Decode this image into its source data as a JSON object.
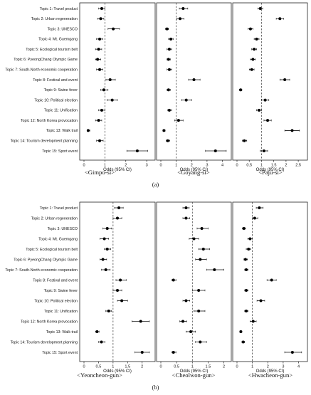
{
  "figure": {
    "part_a_label": "(a)",
    "part_b_label": "(b)"
  },
  "chart_data": [
    {
      "type": "forest",
      "region": "<Gimpo-si>",
      "xlabel": "Odds (95% CI)",
      "xlim": [
        0,
        3.2
      ],
      "xticks": [
        0,
        1,
        2,
        3
      ],
      "reference_line": 1,
      "topics": [
        "Topic 1: Travel product",
        "Topic 2: Urban regeneration",
        "Topic 3: UNESCO",
        "Topic 4: Mt. Guemgang",
        "Topic 5: Ecological tourism belt",
        "Topic 6: PyeongChang Olympic Game",
        "Topic 7: South-North economic cooperation",
        "Topic 8: Festival and event",
        "Topic 9: Swine fever",
        "Topic 10: Political election",
        "Topic 11: Unification",
        "Topic 12: North Korea provocation",
        "Topic 13: Walk trail",
        "Topic 14: Tourism development planning",
        "Topic 15: Sport event"
      ],
      "odds": [
        0.85,
        0.8,
        1.4,
        0.75,
        0.7,
        0.65,
        0.75,
        1.25,
        0.95,
        1.35,
        0.85,
        0.7,
        0.2,
        0.75,
        2.55
      ],
      "ci_low": [
        0.7,
        0.65,
        1.15,
        0.6,
        0.55,
        0.55,
        0.6,
        1.05,
        0.8,
        1.1,
        0.7,
        0.55,
        0.15,
        0.6,
        2.05
      ],
      "ci_high": [
        1.0,
        0.95,
        1.7,
        0.9,
        0.85,
        0.8,
        0.9,
        1.5,
        1.15,
        1.6,
        1.0,
        0.85,
        0.28,
        0.92,
        3.05
      ]
    },
    {
      "type": "forest",
      "region": "<Goyang-si>",
      "xlabel": "Odds (95% CI)",
      "xlim": [
        0,
        4.3
      ],
      "xticks": [
        0,
        1,
        2,
        3,
        4
      ],
      "reference_line": 1,
      "topics": [],
      "odds": [
        1.45,
        1.25,
        0.4,
        0.65,
        0.55,
        0.5,
        0.55,
        2.15,
        0.5,
        1.65,
        0.55,
        1.15,
        0.2,
        0.45,
        3.55
      ],
      "ci_low": [
        1.2,
        1.05,
        0.3,
        0.5,
        0.4,
        0.4,
        0.4,
        1.8,
        0.4,
        1.35,
        0.45,
        0.9,
        0.15,
        0.35,
        2.9
      ],
      "ci_high": [
        1.75,
        1.5,
        0.5,
        0.8,
        0.7,
        0.62,
        0.7,
        2.55,
        0.62,
        2.0,
        0.7,
        1.45,
        0.28,
        0.58,
        4.25
      ]
    },
    {
      "type": "forest",
      "region": "<Paju-si>",
      "xlabel": "Odds (95% CI)",
      "xlim": [
        0,
        2.7
      ],
      "xticks": [
        0,
        0.5,
        1,
        1.5,
        2,
        2.5
      ],
      "reference_line": 1,
      "topics": [],
      "odds": [
        0.95,
        1.75,
        0.55,
        0.8,
        0.7,
        0.65,
        0.6,
        1.95,
        0.15,
        1.15,
        0.9,
        1.25,
        2.25,
        0.3,
        1.1
      ],
      "ci_low": [
        0.85,
        1.6,
        0.45,
        0.7,
        0.6,
        0.55,
        0.5,
        1.75,
        0.1,
        1.0,
        0.8,
        1.1,
        1.95,
        0.22,
        0.95
      ],
      "ci_high": [
        1.05,
        1.9,
        0.65,
        0.9,
        0.8,
        0.75,
        0.7,
        2.15,
        0.2,
        1.3,
        1.0,
        1.4,
        2.55,
        0.4,
        1.25
      ]
    },
    {
      "type": "forest",
      "region": "<Yeoncheon-gun>",
      "xlabel": "Odds (95% CI)",
      "xlim": [
        0,
        2.3
      ],
      "xticks": [
        0,
        0.5,
        1,
        1.5,
        2
      ],
      "reference_line": 1,
      "topics": [
        "Topic 1: Travel product",
        "Topic 2: Urban regeneration",
        "Topic 3: UNESCO",
        "Topic 4: Mt. Guemgang",
        "Topic 5: Ecological tourism belt",
        "Topic 6: PyeongChang Olympic Game",
        "Topic 7: South-North economic cooperation",
        "Topic 8: Festival and event",
        "Topic 9: Swine fever",
        "Topic 10: Political election",
        "Topic 11: Unification",
        "Topic 12: North Korea provocation",
        "Topic 13: Walk trail",
        "Topic 14: Tourism development planning",
        "Topic 15: Sport event"
      ],
      "odds": [
        1.2,
        1.15,
        0.8,
        0.7,
        0.8,
        0.65,
        0.75,
        1.25,
        1.15,
        1.3,
        0.85,
        1.95,
        0.45,
        0.6,
        2.0
      ],
      "ci_low": [
        1.05,
        1.0,
        0.65,
        0.55,
        0.7,
        0.55,
        0.6,
        1.1,
        1.0,
        1.15,
        0.75,
        1.65,
        0.4,
        0.5,
        1.75
      ],
      "ci_high": [
        1.35,
        1.3,
        0.95,
        0.85,
        0.92,
        0.78,
        0.9,
        1.45,
        1.3,
        1.5,
        0.95,
        2.25,
        0.52,
        0.72,
        2.25
      ]
    },
    {
      "type": "forest",
      "region": "<Cheolwon-gun>",
      "xlabel": "Odds (95% CI)",
      "xlim": [
        0,
        2.1
      ],
      "xticks": [
        0,
        0.5,
        1,
        1.5,
        2
      ],
      "reference_line": 1,
      "topics": [],
      "odds": [
        0.8,
        0.8,
        1.3,
        1.05,
        1.35,
        1.25,
        1.7,
        0.4,
        1.2,
        0.8,
        1.2,
        0.7,
        0.95,
        1.25,
        0.4
      ],
      "ci_low": [
        0.7,
        0.7,
        1.15,
        0.9,
        1.2,
        1.1,
        1.45,
        0.35,
        1.0,
        0.7,
        1.05,
        0.6,
        0.8,
        1.1,
        0.35
      ],
      "ci_high": [
        0.9,
        0.92,
        1.5,
        1.2,
        1.55,
        1.45,
        2.0,
        0.48,
        1.4,
        0.92,
        1.4,
        0.82,
        1.1,
        1.45,
        0.48
      ]
    },
    {
      "type": "forest",
      "region": "<Hwacheon-gun>",
      "xlabel": "Odds (95% CI)",
      "xlim": [
        0,
        4.3
      ],
      "xticks": [
        0,
        1,
        2,
        3,
        4
      ],
      "reference_line": 1,
      "topics": [],
      "odds": [
        1.45,
        1.15,
        0.45,
        0.85,
        0.75,
        0.55,
        0.6,
        2.25,
        0.6,
        1.55,
        0.6,
        1.05,
        0.25,
        0.4,
        3.6
      ],
      "ci_low": [
        1.25,
        1.0,
        0.35,
        0.7,
        0.6,
        0.45,
        0.5,
        1.95,
        0.5,
        1.3,
        0.5,
        0.85,
        0.18,
        0.32,
        3.1
      ],
      "ci_high": [
        1.7,
        1.35,
        0.55,
        1.0,
        0.9,
        0.68,
        0.72,
        2.55,
        0.72,
        1.8,
        0.72,
        1.25,
        0.32,
        0.5,
        4.2
      ]
    }
  ]
}
